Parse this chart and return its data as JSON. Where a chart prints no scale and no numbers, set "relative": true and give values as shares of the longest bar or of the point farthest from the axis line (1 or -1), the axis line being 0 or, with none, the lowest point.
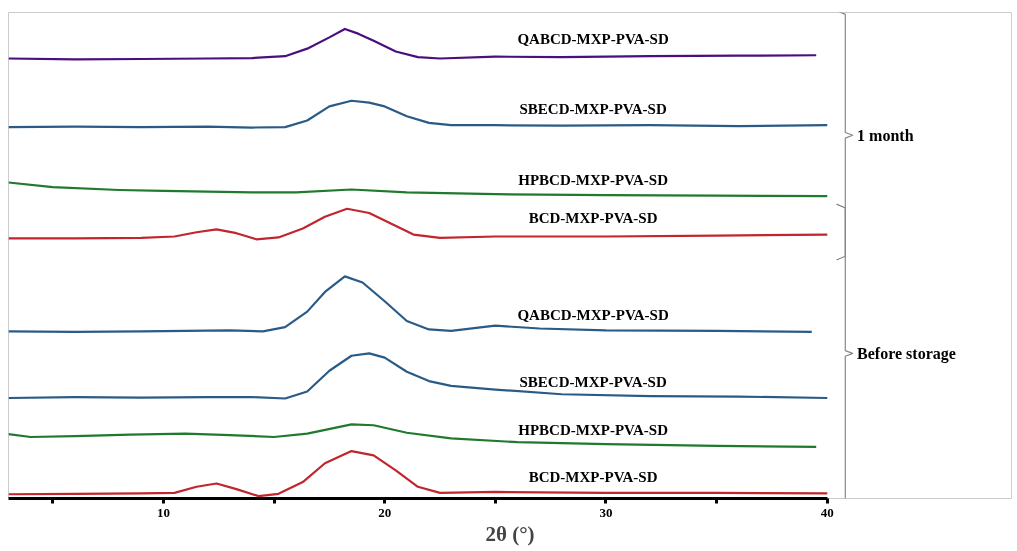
{
  "chart_data": {
    "type": "line",
    "relative": true,
    "xlabel": "2θ (°)",
    "xlim": [
      3,
      40
    ],
    "xticks": [
      {
        "value": 5,
        "label": null
      },
      10,
      {
        "value": 15,
        "label": null
      },
      20,
      {
        "value": 25,
        "label": null
      },
      30,
      {
        "value": 35,
        "label": null
      },
      40
    ],
    "grid": false,
    "marker": "none",
    "line_style": "solid",
    "annotations": [
      "1 month",
      "Before storage"
    ],
    "series": [
      {
        "name": "QABCD-MXP-PVA-SD",
        "color": "#4b0f7d",
        "x": [
          3,
          6,
          9,
          12,
          14,
          15.5,
          16.5,
          17.5,
          18.2,
          18.8,
          19.5,
          20.5,
          21.5,
          22.5,
          25,
          28,
          32,
          36,
          39.5
        ],
        "values": [
          0.937,
          0.935,
          0.936,
          0.937,
          0.938,
          0.942,
          0.958,
          0.982,
          1.0,
          0.99,
          0.975,
          0.952,
          0.94,
          0.937,
          0.941,
          0.94,
          0.942,
          0.943,
          0.944
        ]
      },
      {
        "name": "SBECD-MXP-PVA-SD",
        "color": "#2a5b86",
        "x": [
          3,
          6,
          9,
          12,
          14,
          15.5,
          16.5,
          17.5,
          18.5,
          19.3,
          20,
          21,
          22,
          23,
          25,
          28,
          32,
          36,
          40
        ],
        "values": [
          0.791,
          0.792,
          0.791,
          0.792,
          0.79,
          0.791,
          0.805,
          0.835,
          0.847,
          0.843,
          0.835,
          0.814,
          0.8,
          0.795,
          0.795,
          0.794,
          0.795,
          0.793,
          0.795
        ]
      },
      {
        "name": "HPBCD-MXP-PVA-SD",
        "color": "#1f7a2d",
        "x": [
          3,
          5,
          8,
          10,
          14,
          16,
          18.5,
          21,
          25,
          30,
          35,
          40
        ],
        "values": [
          0.673,
          0.663,
          0.657,
          0.655,
          0.652,
          0.652,
          0.658,
          0.652,
          0.648,
          0.646,
          0.645,
          0.644
        ]
      },
      {
        "name": "BCD-MXP-PVA-SD",
        "color": "#c0262c",
        "x": [
          3,
          6,
          9,
          10.5,
          11.5,
          12.4,
          13.3,
          14.2,
          15.2,
          16.3,
          17.3,
          18.3,
          19.3,
          20.3,
          21.3,
          22.5,
          25,
          30,
          35,
          40
        ],
        "values": [
          0.554,
          0.554,
          0.555,
          0.558,
          0.567,
          0.573,
          0.565,
          0.552,
          0.556,
          0.575,
          0.6,
          0.617,
          0.608,
          0.585,
          0.562,
          0.555,
          0.558,
          0.558,
          0.56,
          0.562
        ]
      },
      {
        "name": "QABCD-MXP-PVA-SD",
        "color": "#2a5b86",
        "x": [
          3,
          6,
          9,
          11,
          13,
          14.5,
          15.5,
          16.5,
          17.3,
          18.2,
          19,
          20,
          21,
          22,
          23,
          25,
          27,
          30,
          35,
          39.3
        ],
        "values": [
          0.356,
          0.355,
          0.356,
          0.357,
          0.358,
          0.356,
          0.365,
          0.398,
          0.44,
          0.473,
          0.46,
          0.42,
          0.378,
          0.36,
          0.357,
          0.368,
          0.362,
          0.358,
          0.357,
          0.355
        ]
      },
      {
        "name": "SBECD-MXP-PVA-SD",
        "color": "#2a5b86",
        "x": [
          3,
          6,
          9,
          12,
          14,
          15.5,
          16.5,
          17.5,
          18.5,
          19.3,
          20,
          21,
          22,
          23,
          25,
          28,
          32,
          36,
          40
        ],
        "values": [
          0.214,
          0.216,
          0.215,
          0.216,
          0.216,
          0.213,
          0.228,
          0.272,
          0.304,
          0.309,
          0.3,
          0.27,
          0.25,
          0.24,
          0.232,
          0.222,
          0.218,
          0.217,
          0.214
        ]
      },
      {
        "name": "HPBCD-MXP-PVA-SD",
        "color": "#1f7a2d",
        "x": [
          3,
          4,
          6,
          8.5,
          11,
          13,
          15,
          16.5,
          18.5,
          19.5,
          21,
          23,
          26,
          30,
          35,
          39.5
        ],
        "values": [
          0.137,
          0.131,
          0.133,
          0.136,
          0.138,
          0.135,
          0.131,
          0.138,
          0.158,
          0.156,
          0.14,
          0.128,
          0.12,
          0.116,
          0.112,
          0.11
        ]
      },
      {
        "name": "BCD-MXP-PVA-SD",
        "color": "#c0262c",
        "x": [
          3,
          6,
          9,
          10.5,
          11.5,
          12.4,
          13.3,
          14.3,
          15.2,
          16.3,
          17.3,
          18.5,
          19.5,
          20.5,
          21.5,
          22.5,
          25,
          30,
          35,
          40
        ],
        "values": [
          0.009,
          0.01,
          0.011,
          0.012,
          0.025,
          0.032,
          0.02,
          0.005,
          0.01,
          0.035,
          0.075,
          0.101,
          0.092,
          0.06,
          0.025,
          0.012,
          0.014,
          0.012,
          0.012,
          0.011
        ]
      }
    ]
  }
}
